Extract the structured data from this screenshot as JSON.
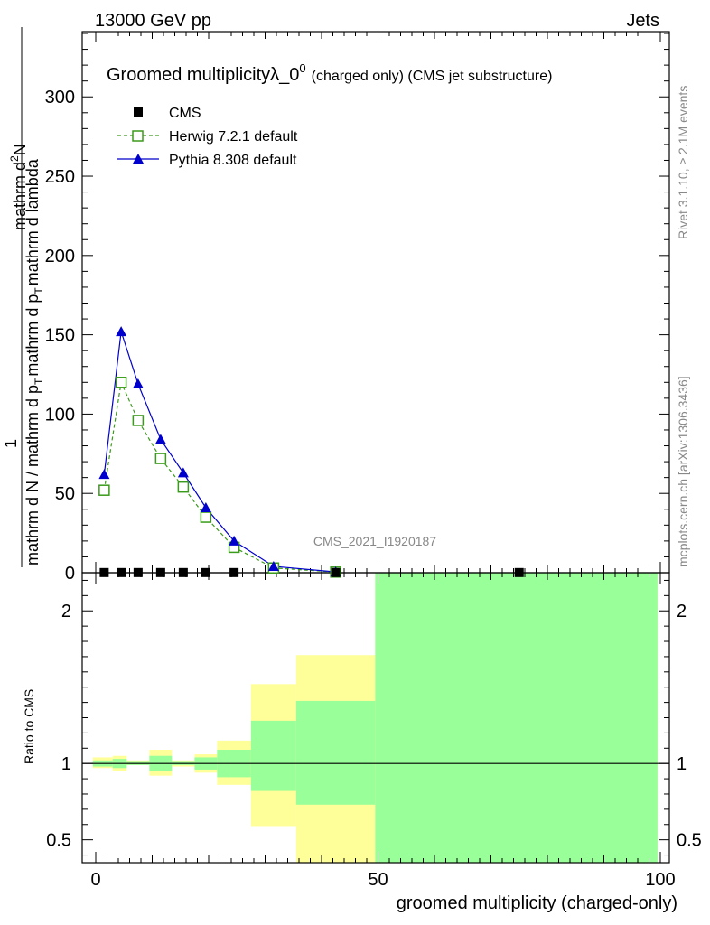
{
  "header": {
    "left": "13000 GeV pp",
    "right": "Jets"
  },
  "side_labels": {
    "rivet": "Rivet 3.1.10, ≥ 2.1M events",
    "mcplots": "mcplots.cern.ch [arXiv:1306.3436]"
  },
  "chart_data": {
    "type": "line",
    "title_main": "Groomed multiplicityλ_0",
    "title_sup": "0",
    "title_rest": "(charged only) (CMS jet substructure)",
    "watermark": "CMS_2021_I1920187",
    "ylabel": {
      "numerator": "mathrm d",
      "numerator_sup": "2",
      "numerator_tail": "N",
      "one": "1",
      "denominator": "mathrm d N / mathrm d p",
      "denominator_sub": "T",
      "denominator_tail": "mathrm d p",
      "denominator_tail_sub": "T",
      "denominator_end": "mathrm d lambda"
    },
    "xlabel": "groomed multiplicity (charged-only)",
    "ratio_ylabel": "Ratio to CMS",
    "xlim": [
      -2,
      100
    ],
    "ylim": [
      0,
      340
    ],
    "ratio_ylim": [
      0.35,
      2.25
    ],
    "x_ticks": [
      0,
      50,
      100
    ],
    "x_tick_labels": [
      "0",
      "50",
      "100"
    ],
    "y_ticks": [
      0,
      50,
      100,
      150,
      200,
      250,
      300
    ],
    "y_tick_labels": [
      "0",
      "50",
      "100",
      "150",
      "200",
      "250",
      "300"
    ],
    "ratio_ticks": [
      0.5,
      1,
      2
    ],
    "ratio_tick_labels": [
      "0.5",
      "1",
      "2"
    ],
    "legend": {
      "placement": "top-left",
      "entries": [
        {
          "label": "CMS",
          "color": "#000000",
          "marker": "square-filled"
        },
        {
          "label": "Herwig 7.2.1 default",
          "color": "#3a9a1a",
          "marker": "square-open"
        },
        {
          "label": "Pythia 8.308 default",
          "color": "#0000cc",
          "marker": "triangle"
        }
      ]
    },
    "series": [
      {
        "name": "CMS",
        "x": [
          1.5,
          4.5,
          7.5,
          11.5,
          15.5,
          19.5,
          24.5,
          42.5,
          75
        ],
        "y": [
          0.1,
          0.1,
          0.1,
          0.1,
          0.1,
          0.1,
          0.1,
          0.1,
          0.1
        ]
      },
      {
        "name": "Herwig 7.2.1 default",
        "x": [
          1.5,
          4.5,
          7.5,
          11.5,
          15.5,
          19.5,
          24.5,
          31.5,
          42.5
        ],
        "y": [
          52,
          120,
          96,
          72,
          54,
          35,
          16,
          3,
          0.4
        ]
      },
      {
        "name": "Pythia 8.308 default",
        "x": [
          1.5,
          4.5,
          7.5,
          11.5,
          15.5,
          19.5,
          24.5,
          31.5,
          42.5
        ],
        "y": [
          62,
          152,
          119,
          84,
          63,
          41,
          20,
          4,
          0.5
        ]
      }
    ],
    "ratio_bands": [
      {
        "x0": -0.5,
        "x1": 3,
        "green": [
          0.98,
          1.02
        ],
        "yellow": [
          0.97,
          1.04
        ]
      },
      {
        "x0": 3,
        "x1": 5.5,
        "green": [
          0.97,
          1.03
        ],
        "yellow": [
          0.95,
          1.05
        ]
      },
      {
        "x0": 5.5,
        "x1": 9.5,
        "green": [
          0.99,
          1.01
        ],
        "yellow": [
          0.99,
          1.02
        ]
      },
      {
        "x0": 9.5,
        "x1": 13.5,
        "green": [
          0.95,
          1.05
        ],
        "yellow": [
          0.92,
          1.09
        ]
      },
      {
        "x0": 13.5,
        "x1": 17.5,
        "green": [
          0.99,
          1.01
        ],
        "yellow": [
          0.98,
          1.02
        ]
      },
      {
        "x0": 17.5,
        "x1": 21.5,
        "green": [
          0.96,
          1.04
        ],
        "yellow": [
          0.94,
          1.06
        ]
      },
      {
        "x0": 21.5,
        "x1": 27.5,
        "green": [
          0.91,
          1.09
        ],
        "yellow": [
          0.86,
          1.15
        ]
      },
      {
        "x0": 27.5,
        "x1": 35.5,
        "green": [
          0.82,
          1.28
        ],
        "yellow": [
          0.59,
          1.52
        ]
      },
      {
        "x0": 35.5,
        "x1": 49.5,
        "green": [
          0.73,
          1.41
        ],
        "yellow": [
          0.35,
          1.71
        ]
      },
      {
        "x0": 49.5,
        "x1": 99.5,
        "green": [
          0.35,
          2.25
        ],
        "yellow": [
          0.35,
          2.25
        ]
      }
    ],
    "colors": {
      "green_band": "#99ff99",
      "yellow_band": "#ffff99",
      "herwig": "#3a9a1a",
      "pythia": "#0000cc",
      "cms": "#000000"
    }
  }
}
